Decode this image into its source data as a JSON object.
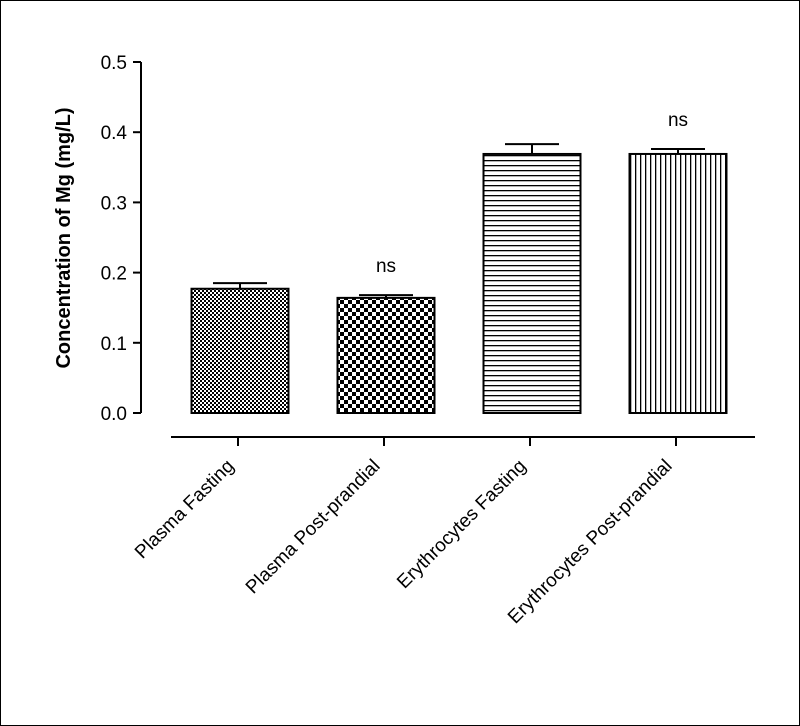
{
  "chart_data": {
    "type": "bar",
    "title": "",
    "xlabel": "",
    "ylabel": "Concentration of Mg (mg/L)",
    "ylim": [
      0,
      0.5
    ],
    "yticks": [
      "0.0",
      "0.1",
      "0.2",
      "0.3",
      "0.4",
      "0.5"
    ],
    "ytick_values": [
      0,
      0.1,
      0.2,
      0.3,
      0.4,
      0.5
    ],
    "categories": [
      "Plasma Fasting",
      "Plasma Post-prandial",
      "Erythrocytes Fasting",
      "Erythrocytes Post-prandial"
    ],
    "values": [
      0.177,
      0.164,
      0.369,
      0.369
    ],
    "errors": [
      0.008,
      0.004,
      0.014,
      0.007
    ],
    "patterns": [
      "fine-checker",
      "checkerboard",
      "horizontal-lines",
      "vertical-lines"
    ],
    "annotations": [
      "",
      "ns",
      "",
      "ns"
    ],
    "grid": false,
    "legend": "none"
  }
}
